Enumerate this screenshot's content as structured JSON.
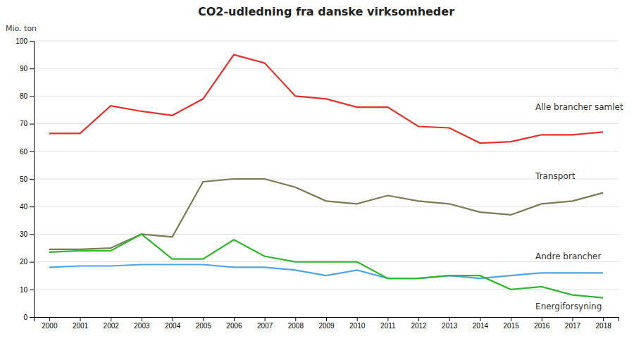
{
  "chart_data": {
    "type": "line",
    "title": "CO2-udledning fra danske virksomheder",
    "ylabel": "Mio. ton",
    "x": [
      2000,
      2001,
      2002,
      2003,
      2004,
      2005,
      2006,
      2007,
      2008,
      2009,
      2010,
      2011,
      2012,
      2013,
      2014,
      2015,
      2016,
      2017,
      2018
    ],
    "series": [
      {
        "name": "Alle brancher samlet",
        "color": "#e8302a",
        "values": [
          66.5,
          66.5,
          76.5,
          74.5,
          73,
          79,
          95,
          92,
          80,
          79,
          76,
          76,
          69,
          68.5,
          63,
          63.5,
          66,
          66,
          67
        ]
      },
      {
        "name": "Transport",
        "color": "#7a7a55",
        "values": [
          24.5,
          24.5,
          25,
          30,
          29,
          49,
          50,
          50,
          47,
          42,
          41,
          44,
          42,
          41,
          38,
          37,
          41,
          42,
          45
        ]
      },
      {
        "name": "Andre brancher",
        "color": "#4da6e8",
        "values": [
          18,
          18.5,
          18.5,
          19,
          19,
          19,
          18,
          18,
          17,
          15,
          17,
          14,
          14,
          15,
          14,
          15,
          16,
          16,
          16
        ]
      },
      {
        "name": "Energiforsyning",
        "color": "#2db82d",
        "values": [
          23.5,
          24,
          24,
          30,
          21,
          21,
          28,
          22,
          20,
          20,
          20,
          14,
          14,
          15,
          15,
          10,
          11,
          8,
          7
        ]
      }
    ],
    "annotations": [
      {
        "text": "Alle brancher samlet",
        "x": 2015.8,
        "y": 76
      },
      {
        "text": "Transport",
        "x": 2015.8,
        "y": 51
      },
      {
        "text": "Andre brancher",
        "x": 2015.8,
        "y": 22
      },
      {
        "text": "Energiforsyning",
        "x": 2015.8,
        "y": 4
      }
    ],
    "xlim": [
      1999.5,
      2018.5
    ],
    "xticks": [
      2000,
      2001,
      2002,
      2003,
      2004,
      2005,
      2006,
      2007,
      2008,
      2009,
      2010,
      2011,
      2012,
      2013,
      2014,
      2015,
      2016,
      2017,
      2018
    ],
    "ylim": [
      0,
      100
    ],
    "yticks": [
      0,
      10,
      20,
      30,
      40,
      50,
      60,
      70,
      80,
      90,
      100
    ],
    "grid": true
  }
}
